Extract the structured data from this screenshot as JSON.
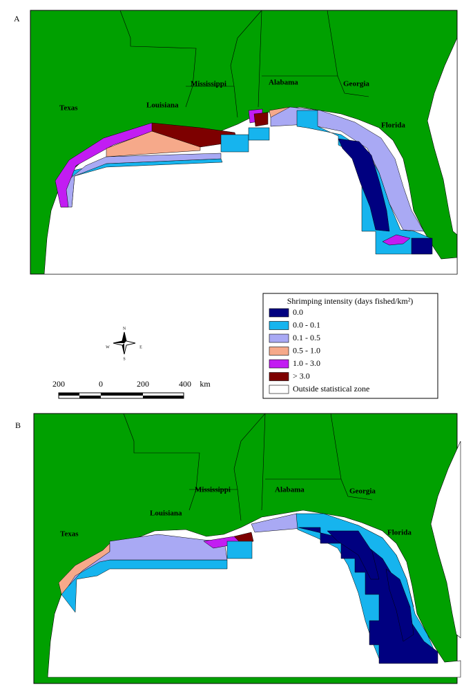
{
  "panels": [
    {
      "label": "A",
      "states": [
        "Texas",
        "Louisiana",
        "Mississippi",
        "Alabama",
        "Georgia",
        "Florida"
      ]
    },
    {
      "label": "B",
      "states": [
        "Texas",
        "Louisiana",
        "Mississippi",
        "Alabama",
        "Georgia",
        "Florida"
      ]
    }
  ],
  "legend": {
    "title": "Shrimping intensity (days fished/km²)",
    "items": [
      {
        "label": "0.0",
        "color": "#000080"
      },
      {
        "label": "0.0 - 0.1",
        "color": "#16b4ee"
      },
      {
        "label": "0.1 - 0.5",
        "color": "#a9a9f4"
      },
      {
        "label": "0.5 - 1.0",
        "color": "#f6a98a"
      },
      {
        "label": "1.0 - 3.0",
        "color": "#c21cf2"
      },
      {
        "label": "> 3.0",
        "color": "#7d0000"
      },
      {
        "label": "Outside statistical zone",
        "color": "#ffffff"
      }
    ]
  },
  "compass": {
    "n": "N",
    "w": "W",
    "e": "E",
    "s": "S"
  },
  "scale": {
    "labels": [
      "200",
      "0",
      "200",
      "400"
    ],
    "unit": "km"
  }
}
